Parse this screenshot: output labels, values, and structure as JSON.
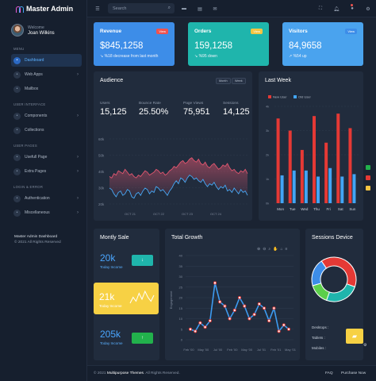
{
  "brand": {
    "name": "Master Admin"
  },
  "profile": {
    "welcome": "Welcome",
    "name": "Joan Wilkins"
  },
  "sidebar": {
    "sections": [
      {
        "label": "MENU",
        "items": [
          {
            "label": "Dashboard",
            "active": true,
            "icon": "home-icon",
            "chevron": false
          },
          {
            "label": "Web Apps",
            "icon": "grid-icon",
            "chevron": true
          },
          {
            "label": "Mailbox",
            "icon": "mail-icon",
            "chevron": false
          }
        ]
      },
      {
        "label": "USER INTERFACE",
        "items": [
          {
            "label": "Components",
            "icon": "layers-icon",
            "chevron": true
          },
          {
            "label": "Collections",
            "icon": "collection-icon",
            "chevron": false
          }
        ]
      },
      {
        "label": "USER PAGES",
        "items": [
          {
            "label": "Usefull Page",
            "icon": "file-icon",
            "chevron": true
          },
          {
            "label": "Extra Pages",
            "icon": "page-icon",
            "chevron": true
          }
        ]
      },
      {
        "label": "LOGIN & ERROR",
        "items": [
          {
            "label": "Authentication",
            "icon": "lock-icon",
            "chevron": true
          },
          {
            "label": "Miscellaneous",
            "icon": "misc-icon",
            "chevron": true
          }
        ]
      }
    ],
    "footer_title": "Master Admin Dashboard",
    "footer_copy": "© 2021 All Rights Reserved"
  },
  "topbar": {
    "search_placeholder": "Search"
  },
  "stats": [
    {
      "title": "Revenue",
      "value": "$845,1258",
      "sub": "%18 decrease from last month",
      "badge": "View",
      "bg": "#3d8de8",
      "badge_bg": "#ef5350",
      "arrow": "↘"
    },
    {
      "title": "Orders",
      "value": "159,1258",
      "sub": "%95 down",
      "badge": "View",
      "bg": "#1fb5ac",
      "badge_bg": "#f5c542",
      "arrow": "↘"
    },
    {
      "title": "Visitors",
      "value": "84,9658",
      "sub": "%54 up",
      "badge": "View",
      "bg": "#4aa3ee",
      "badge_bg": "#3d8de8",
      "arrow": "↗"
    }
  ],
  "audience": {
    "title": "Audience",
    "buttons": [
      "Month",
      "Week"
    ],
    "kpis": [
      {
        "label": "Users",
        "value": "15,125"
      },
      {
        "label": "Bounce Rate",
        "value": "25.50%"
      },
      {
        "label": "Page Views",
        "value": "75,951"
      },
      {
        "label": "Sessions",
        "value": "14,125"
      }
    ],
    "y_labels": [
      "60k",
      "50k",
      "40k",
      "30k",
      "20k"
    ],
    "x_labels": [
      "OCT 21",
      "OCT 22",
      "OCT 23",
      "OCT 24"
    ],
    "series_a": [
      34,
      33,
      36,
      35,
      38,
      37,
      36,
      39,
      37,
      35,
      36,
      34,
      33,
      35,
      34,
      36,
      38,
      37,
      35,
      36,
      37,
      39,
      38,
      36,
      37,
      35,
      36,
      38,
      39,
      41,
      40,
      42,
      44,
      45,
      43,
      44,
      46,
      47,
      45,
      44,
      46,
      43,
      42,
      44,
      41,
      40,
      42,
      43,
      41,
      39,
      40,
      42,
      41,
      43,
      40,
      38,
      39,
      37,
      36,
      38,
      37,
      39,
      36
    ],
    "series_b": [
      26,
      25,
      22,
      20,
      23,
      24,
      21,
      22,
      25,
      24,
      20,
      19,
      22,
      23,
      21,
      24,
      26,
      25,
      22,
      24,
      23,
      27,
      26,
      24,
      25,
      23,
      21,
      24,
      26,
      29,
      31,
      29,
      33,
      32,
      30,
      33,
      35,
      34,
      32,
      33,
      31,
      30,
      32,
      29,
      27,
      29,
      28,
      30,
      27,
      25,
      27,
      26,
      28,
      24,
      25,
      23,
      26,
      24,
      22,
      25,
      23,
      24,
      21
    ],
    "colors": {
      "a": "#e0566f",
      "b": "#47a8f5"
    }
  },
  "last_week": {
    "title": "Last Week",
    "legend": [
      "New User",
      "Old User"
    ],
    "colors": [
      "#e53935",
      "#42a5f5"
    ],
    "categories": [
      "Mon",
      "Tue",
      "Wed",
      "Thu",
      "Fri",
      "Sat",
      "Sun"
    ],
    "y_labels": [
      "4k",
      "3k",
      "2k",
      "1k",
      "0k"
    ],
    "series": [
      {
        "name": "New User",
        "values": [
          3.5,
          3.0,
          2.2,
          3.6,
          2.5,
          3.7,
          3.1
        ]
      },
      {
        "name": "Old User",
        "values": [
          1.15,
          1.35,
          1.35,
          1.1,
          1.45,
          1.1,
          1.2
        ]
      }
    ]
  },
  "monthly_sale": {
    "title": "Montly Sale",
    "rows": [
      {
        "value": "20k",
        "label": "Today Income",
        "btn": "↓",
        "btn_color": "#1fb5ac"
      },
      {
        "value": "21k",
        "label": "Today Income",
        "highlight": true
      },
      {
        "value": "205k",
        "label": "Today Income",
        "btn": "↑",
        "btn_color": "#22b14c"
      }
    ],
    "spark": [
      3,
      6,
      4,
      8,
      5,
      9,
      6,
      4,
      7
    ]
  },
  "total_growth": {
    "title": "Total Growth",
    "ylabel": "Engagement",
    "y_labels": [
      "40",
      "35",
      "30",
      "25",
      "20",
      "15",
      "10",
      "5",
      "0"
    ],
    "x_labels": [
      "Feb '00",
      "May '00",
      "Jul '00",
      "Feb '00",
      "May '00",
      "Jul '01",
      "Feb '01",
      "May '01"
    ],
    "values": [
      5,
      4,
      8,
      6,
      9,
      27,
      18,
      16,
      10,
      14,
      20,
      16,
      10,
      12,
      17,
      15,
      9,
      15,
      4,
      7,
      5
    ],
    "color": "#3d9bf0"
  },
  "sessions_device": {
    "title": "Sessions Device",
    "slices": [
      {
        "name": "Desktops",
        "value": 40,
        "color": "#e53935"
      },
      {
        "name": "Tablets",
        "value": 25,
        "color": "#1fb5ac"
      },
      {
        "name": "Mobiles",
        "value": 15,
        "color": "#5ccf4b"
      },
      {
        "name": "Other",
        "value": 20,
        "color": "#3d8de8"
      }
    ],
    "rows": [
      "Desktops :",
      "Tablets :",
      "Mobiles :"
    ]
  },
  "footer": {
    "year": "© 2021",
    "brand": "Multipurpose Themes",
    "rights": ". All Rights Reserved.",
    "links": [
      "FAQ",
      "Purchase Now"
    ]
  }
}
